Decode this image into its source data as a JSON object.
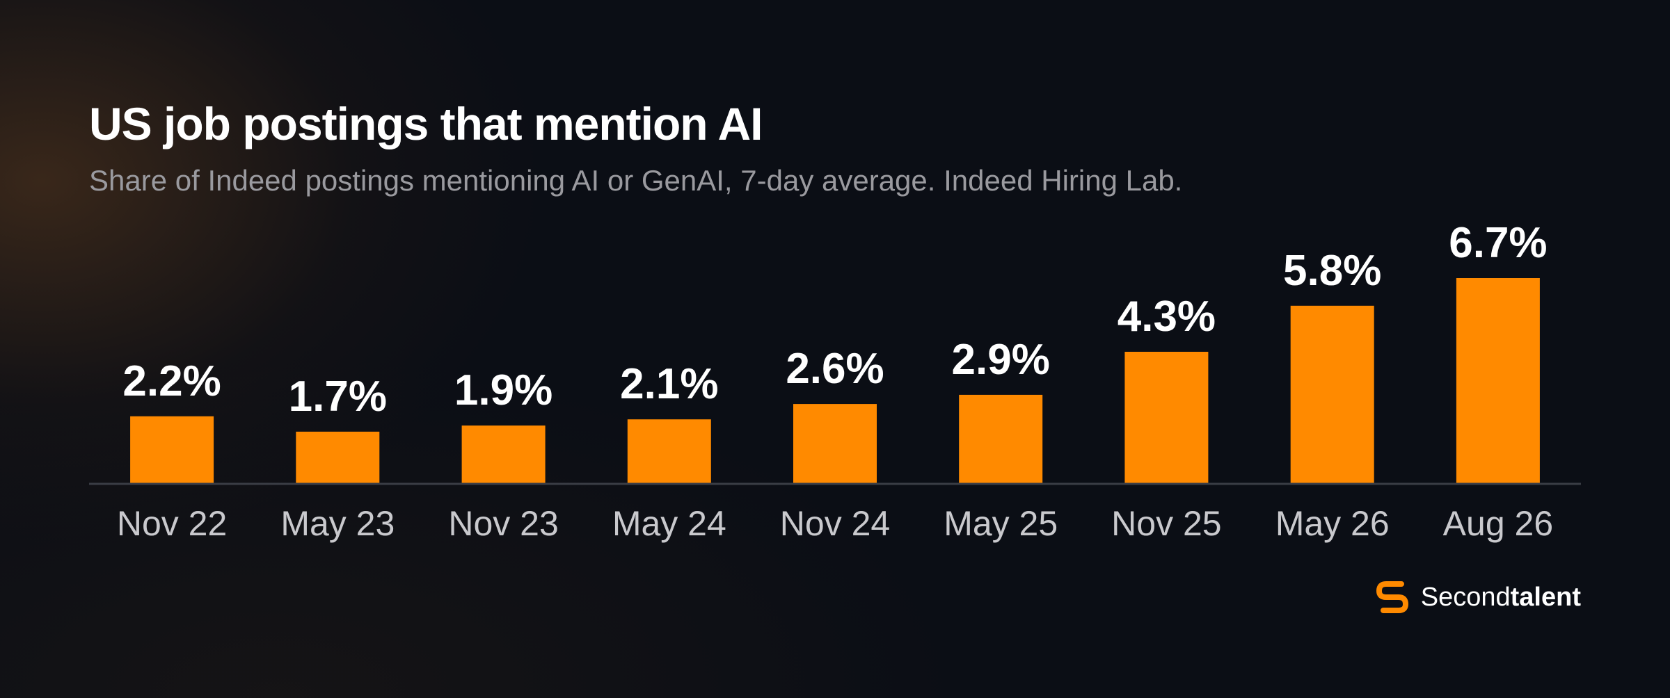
{
  "chart_data": {
    "type": "bar",
    "title": "US job postings that mention AI",
    "subtitle": "Share of Indeed postings mentioning AI or GenAI, 7-day average. Indeed Hiring Lab.",
    "categories": [
      "Nov 22",
      "May 23",
      "Nov 23",
      "May 24",
      "Nov 24",
      "May 25",
      "Nov 25",
      "May 26",
      "Aug 26"
    ],
    "values": [
      2.2,
      1.7,
      1.9,
      2.1,
      2.6,
      2.9,
      4.3,
      5.8,
      6.7
    ],
    "data_labels": [
      "2.2%",
      "1.7%",
      "1.9%",
      "2.1%",
      "2.6%",
      "2.9%",
      "4.3%",
      "5.8%",
      "6.7%"
    ],
    "ylim": [
      0,
      6.7
    ],
    "grid": false,
    "legend": "none",
    "bar_color": "#ff8a00",
    "axis_color": "#3a3d45"
  },
  "brand": {
    "name_regular": "Second",
    "name_bold": "talent",
    "icon": "secondtalent-logo-icon",
    "color": "#ff8a00"
  }
}
